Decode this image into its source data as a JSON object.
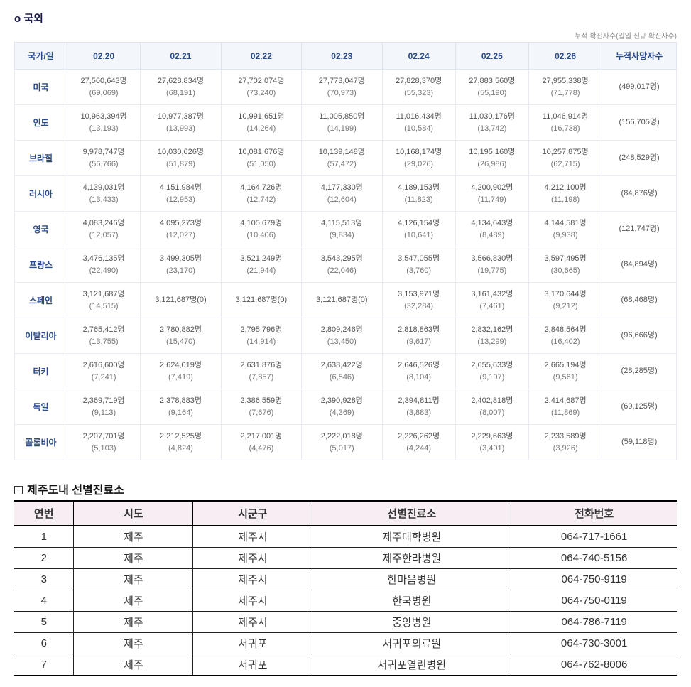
{
  "section1": {
    "title": "o 국외",
    "caption": "누적 확진자수(일일 신규 확진자수)",
    "headers": [
      "국가/일",
      "02.20",
      "02.21",
      "02.22",
      "02.23",
      "02.24",
      "02.25",
      "02.26",
      "누적사망자수"
    ],
    "countries": [
      {
        "name": "미국",
        "days": [
          {
            "total": "27,560,643명",
            "new": "(69,069)"
          },
          {
            "total": "27,628,834명",
            "new": "(68,191)"
          },
          {
            "total": "27,702,074명",
            "new": "(73,240)"
          },
          {
            "total": "27,773,047명",
            "new": "(70,973)"
          },
          {
            "total": "27,828,370명",
            "new": "(55,323)"
          },
          {
            "total": "27,883,560명",
            "new": "(55,190)"
          },
          {
            "total": "27,955,338명",
            "new": "(71,778)"
          }
        ],
        "death": "(499,017명)"
      },
      {
        "name": "인도",
        "days": [
          {
            "total": "10,963,394명",
            "new": "(13,193)"
          },
          {
            "total": "10,977,387명",
            "new": "(13,993)"
          },
          {
            "total": "10,991,651명",
            "new": "(14,264)"
          },
          {
            "total": "11,005,850명",
            "new": "(14,199)"
          },
          {
            "total": "11,016,434명",
            "new": "(10,584)"
          },
          {
            "total": "11,030,176명",
            "new": "(13,742)"
          },
          {
            "total": "11,046,914명",
            "new": "(16,738)"
          }
        ],
        "death": "(156,705명)"
      },
      {
        "name": "브라질",
        "days": [
          {
            "total": "9,978,747명",
            "new": "(56,766)"
          },
          {
            "total": "10,030,626명",
            "new": "(51,879)"
          },
          {
            "total": "10,081,676명",
            "new": "(51,050)"
          },
          {
            "total": "10,139,148명",
            "new": "(57,472)"
          },
          {
            "total": "10,168,174명",
            "new": "(29,026)"
          },
          {
            "total": "10,195,160명",
            "new": "(26,986)"
          },
          {
            "total": "10,257,875명",
            "new": "(62,715)"
          }
        ],
        "death": "(248,529명)"
      },
      {
        "name": "러시아",
        "days": [
          {
            "total": "4,139,031명",
            "new": "(13,433)"
          },
          {
            "total": "4,151,984명",
            "new": "(12,953)"
          },
          {
            "total": "4,164,726명",
            "new": "(12,742)"
          },
          {
            "total": "4,177,330명",
            "new": "(12,604)"
          },
          {
            "total": "4,189,153명",
            "new": "(11,823)"
          },
          {
            "total": "4,200,902명",
            "new": "(11,749)"
          },
          {
            "total": "4,212,100명",
            "new": "(11,198)"
          }
        ],
        "death": "(84,876명)"
      },
      {
        "name": "영국",
        "days": [
          {
            "total": "4,083,246명",
            "new": "(12,057)"
          },
          {
            "total": "4,095,273명",
            "new": "(12,027)"
          },
          {
            "total": "4,105,679명",
            "new": "(10,406)"
          },
          {
            "total": "4,115,513명",
            "new": "(9,834)"
          },
          {
            "total": "4,126,154명",
            "new": "(10,641)"
          },
          {
            "total": "4,134,643명",
            "new": "(8,489)"
          },
          {
            "total": "4,144,581명",
            "new": "(9,938)"
          }
        ],
        "death": "(121,747명)"
      },
      {
        "name": "프랑스",
        "days": [
          {
            "total": "3,476,135명",
            "new": "(22,490)"
          },
          {
            "total": "3,499,305명",
            "new": "(23,170)"
          },
          {
            "total": "3,521,249명",
            "new": "(21,944)"
          },
          {
            "total": "3,543,295명",
            "new": "(22,046)"
          },
          {
            "total": "3,547,055명",
            "new": "(3,760)"
          },
          {
            "total": "3,566,830명",
            "new": "(19,775)"
          },
          {
            "total": "3,597,495명",
            "new": "(30,665)"
          }
        ],
        "death": "(84,894명)"
      },
      {
        "name": "스페인",
        "days": [
          {
            "total": "3,121,687명",
            "new": "(14,515)"
          },
          {
            "total": "3,121,687명(0)",
            "new": ""
          },
          {
            "total": "3,121,687명(0)",
            "new": ""
          },
          {
            "total": "3,121,687명(0)",
            "new": ""
          },
          {
            "total": "3,153,971명",
            "new": "(32,284)"
          },
          {
            "total": "3,161,432명",
            "new": "(7,461)"
          },
          {
            "total": "3,170,644명",
            "new": "(9,212)"
          }
        ],
        "death": "(68,468명)"
      },
      {
        "name": "이탈리아",
        "days": [
          {
            "total": "2,765,412명",
            "new": "(13,755)"
          },
          {
            "total": "2,780,882명",
            "new": "(15,470)"
          },
          {
            "total": "2,795,796명",
            "new": "(14,914)"
          },
          {
            "total": "2,809,246명",
            "new": "(13,450)"
          },
          {
            "total": "2,818,863명",
            "new": "(9,617)"
          },
          {
            "total": "2,832,162명",
            "new": "(13,299)"
          },
          {
            "total": "2,848,564명",
            "new": "(16,402)"
          }
        ],
        "death": "(96,666명)"
      },
      {
        "name": "터키",
        "days": [
          {
            "total": "2,616,600명",
            "new": "(7,241)"
          },
          {
            "total": "2,624,019명",
            "new": "(7,419)"
          },
          {
            "total": "2,631,876명",
            "new": "(7,857)"
          },
          {
            "total": "2,638,422명",
            "new": "(6,546)"
          },
          {
            "total": "2,646,526명",
            "new": "(8,104)"
          },
          {
            "total": "2,655,633명",
            "new": "(9,107)"
          },
          {
            "total": "2,665,194명",
            "new": "(9,561)"
          }
        ],
        "death": "(28,285명)"
      },
      {
        "name": "독일",
        "days": [
          {
            "total": "2,369,719명",
            "new": "(9,113)"
          },
          {
            "total": "2,378,883명",
            "new": "(9,164)"
          },
          {
            "total": "2,386,559명",
            "new": "(7,676)"
          },
          {
            "total": "2,390,928명",
            "new": "(4,369)"
          },
          {
            "total": "2,394,811명",
            "new": "(3,883)"
          },
          {
            "total": "2,402,818명",
            "new": "(8,007)"
          },
          {
            "total": "2,414,687명",
            "new": "(11,869)"
          }
        ],
        "death": "(69,125명)"
      },
      {
        "name": "콜롬비아",
        "days": [
          {
            "total": "2,207,701명",
            "new": "(5,103)"
          },
          {
            "total": "2,212,525명",
            "new": "(4,824)"
          },
          {
            "total": "2,217,001명",
            "new": "(4,476)"
          },
          {
            "total": "2,222,018명",
            "new": "(5,017)"
          },
          {
            "total": "2,226,262명",
            "new": "(4,244)"
          },
          {
            "total": "2,229,663명",
            "new": "(3,401)"
          },
          {
            "total": "2,233,589명",
            "new": "(3,926)"
          }
        ],
        "death": "(59,118명)"
      }
    ]
  },
  "section2": {
    "title": "제주도내 선별진료소",
    "headers": [
      "연번",
      "시도",
      "시군구",
      "선별진료소",
      "전화번호"
    ],
    "rows": [
      [
        "1",
        "제주",
        "제주시",
        "제주대학병원",
        "064-717-1661"
      ],
      [
        "2",
        "제주",
        "제주시",
        "제주한라병원",
        "064-740-5156"
      ],
      [
        "3",
        "제주",
        "제주시",
        "한마음병원",
        "064-750-9119"
      ],
      [
        "4",
        "제주",
        "제주시",
        "한국병원",
        "064-750-0119"
      ],
      [
        "5",
        "제주",
        "제주시",
        "중앙병원",
        "064-786-7119"
      ],
      [
        "6",
        "제주",
        "서귀포",
        "서귀포의료원",
        "064-730-3001"
      ],
      [
        "7",
        "제주",
        "서귀포",
        "서귀포열린병원",
        "064-762-8006"
      ]
    ]
  },
  "style": {
    "header_bg": "#f3f6fb",
    "header_fg": "#2a4b8d",
    "border_color": "#dfe5ee",
    "clinic_header_bg": "#f7eef3"
  }
}
